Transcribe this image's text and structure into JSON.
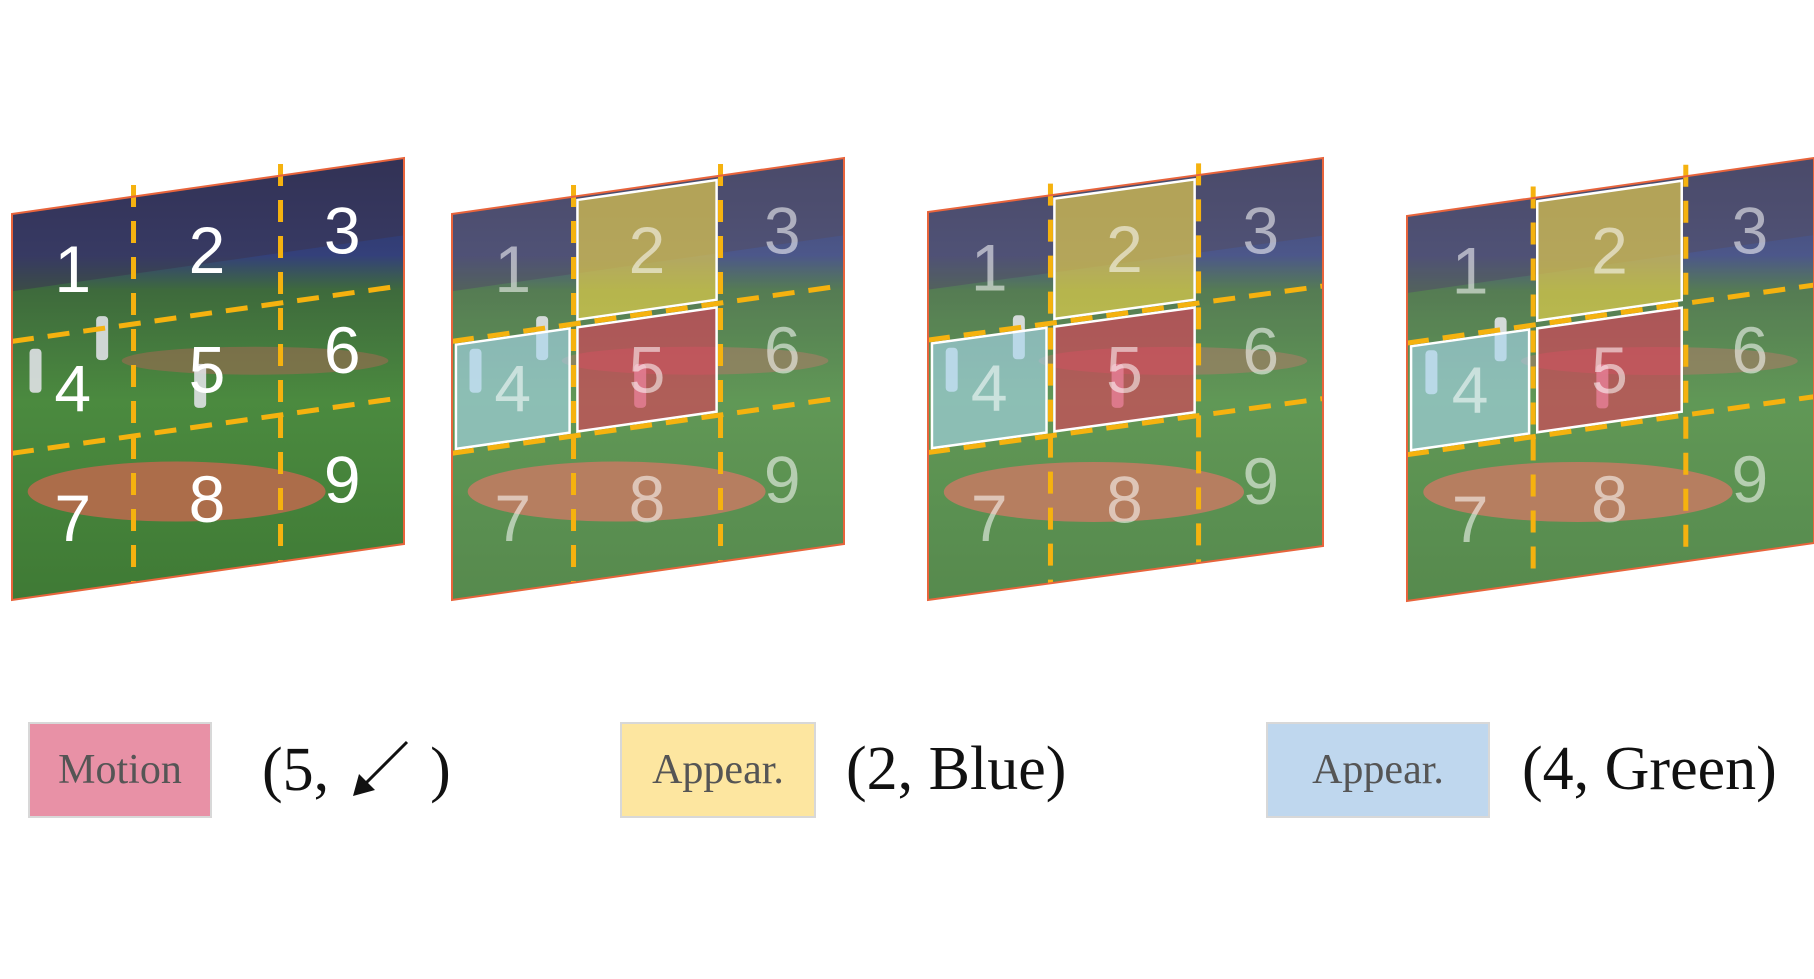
{
  "figure": {
    "grid_numbers": [
      "1",
      "2",
      "3",
      "4",
      "5",
      "6",
      "7",
      "8",
      "9"
    ],
    "frames": [
      {
        "name": "frame-1",
        "highlights": []
      },
      {
        "name": "frame-2",
        "highlights": [
          {
            "cell": "2",
            "kind": "appear-yellow"
          },
          {
            "cell": "4",
            "kind": "appear-blue"
          },
          {
            "cell": "5",
            "kind": "motion"
          }
        ]
      },
      {
        "name": "frame-3",
        "highlights": [
          {
            "cell": "2",
            "kind": "appear-yellow"
          },
          {
            "cell": "4",
            "kind": "appear-blue"
          },
          {
            "cell": "5",
            "kind": "motion"
          }
        ]
      },
      {
        "name": "frame-4",
        "highlights": [
          {
            "cell": "2",
            "kind": "appear-yellow"
          },
          {
            "cell": "4",
            "kind": "appear-blue"
          },
          {
            "cell": "5",
            "kind": "motion"
          }
        ]
      }
    ]
  },
  "legend": {
    "motion": {
      "label": "Motion",
      "tuple_prefix": "(5,",
      "tuple_suffix": ")",
      "arrow_icon": "arrow-down-left-icon",
      "color": "#e891a6"
    },
    "appear_yellow": {
      "label": "Appear.",
      "tuple": "(2, Blue)",
      "color": "#fde6a0"
    },
    "appear_blue": {
      "label": "Appear.",
      "tuple": "(4, Green)",
      "color": "#bfd7ee"
    }
  },
  "colors": {
    "grid_line": "#f5b20f",
    "frame_border": "#e8643c",
    "motion_fill": "#e03c5a",
    "yellow_fill": "#f2d94a",
    "blue_fill": "#a8d6ef"
  }
}
